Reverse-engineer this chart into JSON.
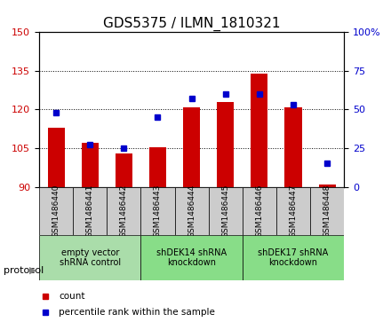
{
  "title": "GDS5375 / ILMN_1810321",
  "samples": [
    "GSM1486440",
    "GSM1486441",
    "GSM1486442",
    "GSM1486443",
    "GSM1486444",
    "GSM1486445",
    "GSM1486446",
    "GSM1486447",
    "GSM1486448"
  ],
  "counts": [
    113.0,
    107.0,
    103.0,
    105.5,
    121.0,
    123.0,
    134.0,
    121.0,
    91.0
  ],
  "percentiles": [
    48,
    27,
    25,
    45,
    57,
    60,
    60,
    53,
    15
  ],
  "bar_bottom": 90,
  "left_ylim": [
    90,
    150
  ],
  "right_ylim": [
    0,
    100
  ],
  "left_yticks": [
    90,
    105,
    120,
    135,
    150
  ],
  "right_yticks": [
    0,
    25,
    50,
    75,
    100
  ],
  "right_yticklabels": [
    "0",
    "25",
    "50",
    "75",
    "100%"
  ],
  "bar_color": "#cc0000",
  "marker_color": "#0000cc",
  "grid_color": "#000000",
  "bg_plot": "#ffffff",
  "bg_xtick": "#dddddd",
  "protocol_groups": [
    {
      "label": "empty vector\nshRNA control",
      "start": 0,
      "end": 3,
      "color": "#aaddaa"
    },
    {
      "label": "shDEK14 shRNA\nknockdown",
      "start": 3,
      "end": 6,
      "color": "#88dd88"
    },
    {
      "label": "shDEK17 shRNA\nknockdown",
      "start": 6,
      "end": 9,
      "color": "#88dd88"
    }
  ],
  "legend_count_label": "count",
  "legend_pct_label": "percentile rank within the sample",
  "protocol_label": "protocol",
  "title_fontsize": 11,
  "axis_fontsize": 9,
  "tick_fontsize": 8
}
